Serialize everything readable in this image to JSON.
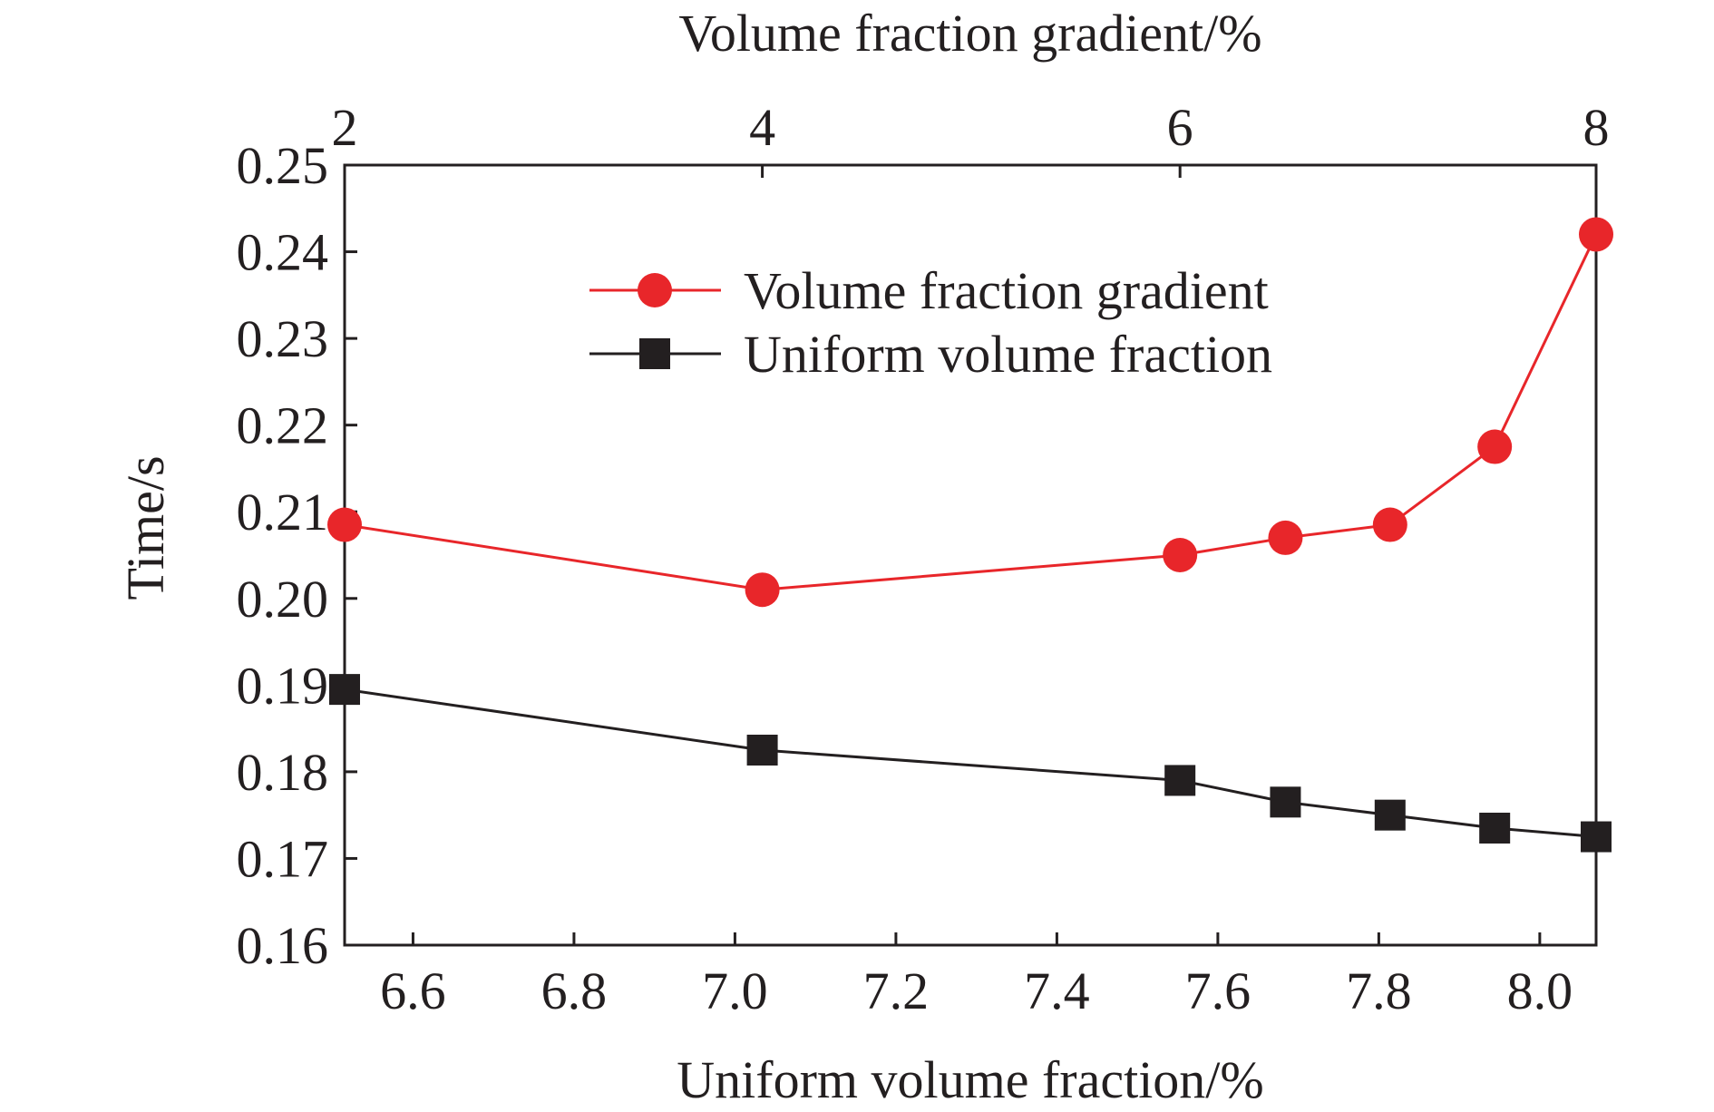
{
  "chart_data": {
    "type": "line",
    "xlabel_bottom": "Uniform volume fraction/%",
    "xlabel_top": "Volume fraction gradient/%",
    "ylabel": "Time/s",
    "bottom_axis": {
      "range": [
        6.515,
        8.07
      ],
      "ticks": [
        6.6,
        6.8,
        7.0,
        7.2,
        7.4,
        7.6,
        7.8,
        8.0
      ],
      "tick_labels": [
        "6.6",
        "6.8",
        "7.0",
        "7.2",
        "7.4",
        "7.6",
        "7.8",
        "8.0"
      ]
    },
    "top_axis": {
      "ticks": [
        2,
        4,
        6,
        8
      ],
      "tick_labels": [
        "2",
        "4",
        "6",
        "8"
      ],
      "tick_positions_on_bottom_scale": [
        6.515,
        7.034,
        7.553,
        8.07
      ]
    },
    "y_axis": {
      "range": [
        0.16,
        0.25
      ],
      "ticks": [
        0.16,
        0.17,
        0.18,
        0.19,
        0.2,
        0.21,
        0.22,
        0.23,
        0.24,
        0.25
      ],
      "tick_labels": [
        "0.16",
        "0.17",
        "0.18",
        "0.19",
        "0.20",
        "0.21",
        "0.22",
        "0.23",
        "0.24",
        "0.25"
      ]
    },
    "x": [
      6.515,
      7.034,
      7.553,
      7.684,
      7.814,
      7.944,
      8.07
    ],
    "series": [
      {
        "name": "Volume fraction gradient",
        "color": "#e8262a",
        "marker": "circle",
        "values": [
          0.2085,
          0.201,
          0.205,
          0.207,
          0.2085,
          0.2175,
          0.242
        ]
      },
      {
        "name": "Uniform volume fraction",
        "color": "#231f20",
        "marker": "square",
        "values": [
          0.1895,
          0.1825,
          0.179,
          0.1765,
          0.175,
          0.1735,
          0.1725
        ]
      }
    ],
    "legend_position": "upper-right-inside",
    "grid": false
  }
}
